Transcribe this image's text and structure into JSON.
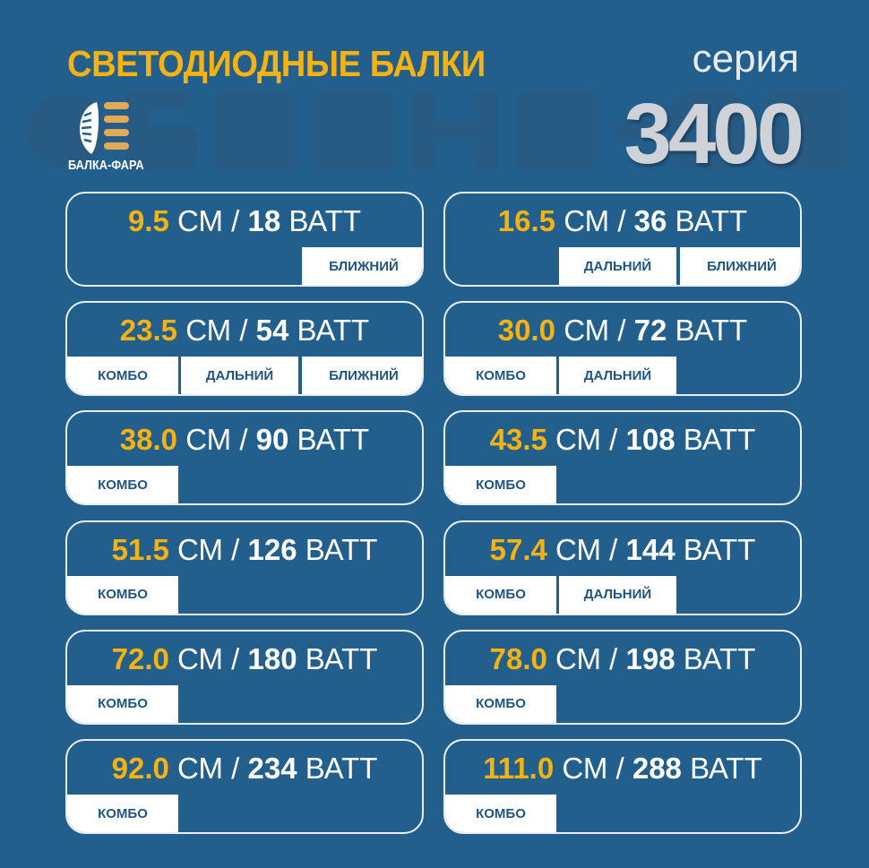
{
  "header": {
    "title": "СВЕТОДИОДНЫЕ БАЛКИ",
    "series_label": "серия",
    "series_number": "3400",
    "logo_text": "БАЛКА-ФАРА",
    "watermark": "БАЛКА-ФАРА"
  },
  "colors": {
    "background": "#235f8d",
    "accent": "#f6b20f",
    "tag_text": "#1f5582"
  },
  "units": {
    "cm": "СМ",
    "sep": "/",
    "watt": "ВАТТ"
  },
  "cards": [
    {
      "length": "9.5",
      "watt": "18",
      "tags": [
        "",
        "",
        "БЛИЖНИЙ"
      ]
    },
    {
      "length": "16.5",
      "watt": "36",
      "tags": [
        "",
        "ДАЛЬНИЙ",
        "БЛИЖНИЙ"
      ]
    },
    {
      "length": "23.5",
      "watt": "54",
      "tags": [
        "КОМБО",
        "ДАЛЬНИЙ",
        "БЛИЖНИЙ"
      ]
    },
    {
      "length": "30.0",
      "watt": "72",
      "tags": [
        "КОМБО",
        "ДАЛЬНИЙ",
        ""
      ]
    },
    {
      "length": "38.0",
      "watt": "90",
      "tags": [
        "КОМБО",
        "",
        ""
      ]
    },
    {
      "length": "43.5",
      "watt": "108",
      "tags": [
        "КОМБО",
        "",
        ""
      ]
    },
    {
      "length": "51.5",
      "watt": "126",
      "tags": [
        "КОМБО",
        "",
        ""
      ]
    },
    {
      "length": "57.4",
      "watt": "144",
      "tags": [
        "КОМБО",
        "ДАЛЬНИЙ",
        ""
      ]
    },
    {
      "length": "72.0",
      "watt": "180",
      "tags": [
        "КОМБО",
        "",
        ""
      ]
    },
    {
      "length": "78.0",
      "watt": "198",
      "tags": [
        "КОМБО",
        "",
        ""
      ]
    },
    {
      "length": "92.0",
      "watt": "234",
      "tags": [
        "КОМБО",
        "",
        ""
      ]
    },
    {
      "length": "111.0",
      "watt": "288",
      "tags": [
        "КОМБО",
        "",
        ""
      ]
    }
  ]
}
